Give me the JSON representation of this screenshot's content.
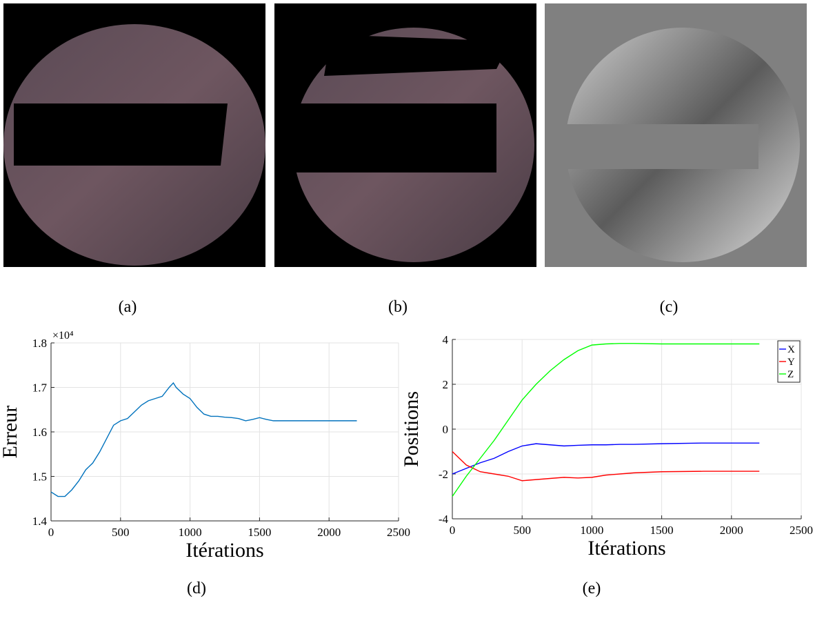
{
  "captions": [
    "(a)",
    "(b)",
    "(c)"
  ],
  "chart_data": [
    {
      "type": "line",
      "caption": "(d)",
      "xlabel": "Itérations",
      "ylabel": "Erreur",
      "y_exponent": "×10⁴",
      "x": [
        0,
        50,
        100,
        150,
        200,
        250,
        300,
        350,
        400,
        450,
        500,
        550,
        600,
        650,
        700,
        750,
        800,
        850,
        880,
        900,
        950,
        1000,
        1050,
        1100,
        1150,
        1200,
        1250,
        1300,
        1350,
        1400,
        1450,
        1500,
        1550,
        1600,
        1700,
        1800,
        2000,
        2200
      ],
      "values": [
        1.465,
        1.455,
        1.455,
        1.47,
        1.49,
        1.515,
        1.53,
        1.555,
        1.585,
        1.615,
        1.625,
        1.63,
        1.645,
        1.66,
        1.67,
        1.675,
        1.68,
        1.7,
        1.71,
        1.7,
        1.685,
        1.675,
        1.655,
        1.64,
        1.635,
        1.635,
        1.633,
        1.632,
        1.63,
        1.625,
        1.628,
        1.632,
        1.628,
        1.625,
        1.625,
        1.625,
        1.625,
        1.625
      ],
      "color": "#0072bd",
      "xlim": [
        0,
        2500
      ],
      "ylim": [
        1.4,
        1.8
      ],
      "xticks": [
        0,
        500,
        1000,
        1500,
        2000,
        2500
      ],
      "yticks": [
        1.4,
        1.5,
        1.6,
        1.7,
        1.8
      ],
      "grid": true
    },
    {
      "type": "line",
      "caption": "(e)",
      "xlabel": "Itérations",
      "ylabel": "Positions",
      "x": [
        0,
        100,
        200,
        300,
        400,
        500,
        600,
        700,
        800,
        900,
        1000,
        1100,
        1200,
        1300,
        1500,
        1800,
        2200
      ],
      "series": [
        {
          "name": "X",
          "color": "#0000ff",
          "values": [
            -2,
            -1.75,
            -1.5,
            -1.3,
            -1.0,
            -0.75,
            -0.65,
            -0.7,
            -0.75,
            -0.72,
            -0.7,
            -0.7,
            -0.68,
            -0.68,
            -0.65,
            -0.62,
            -0.62
          ]
        },
        {
          "name": "Y",
          "color": "#ff0000",
          "values": [
            -1,
            -1.6,
            -1.9,
            -2.0,
            -2.1,
            -2.3,
            -2.25,
            -2.2,
            -2.15,
            -2.18,
            -2.15,
            -2.05,
            -2.0,
            -1.95,
            -1.9,
            -1.88,
            -1.88
          ]
        },
        {
          "name": "Z",
          "color": "#00ff00",
          "values": [
            -3,
            -2.1,
            -1.3,
            -0.5,
            0.4,
            1.3,
            2.0,
            2.6,
            3.1,
            3.5,
            3.75,
            3.8,
            3.82,
            3.82,
            3.8,
            3.8,
            3.8
          ]
        }
      ],
      "xlim": [
        0,
        2500
      ],
      "ylim": [
        -4,
        4
      ],
      "xticks": [
        0,
        500,
        1000,
        1500,
        2000,
        2500
      ],
      "yticks": [
        -4,
        -2,
        0,
        2,
        4
      ],
      "grid": true,
      "legend": "top-right"
    }
  ]
}
